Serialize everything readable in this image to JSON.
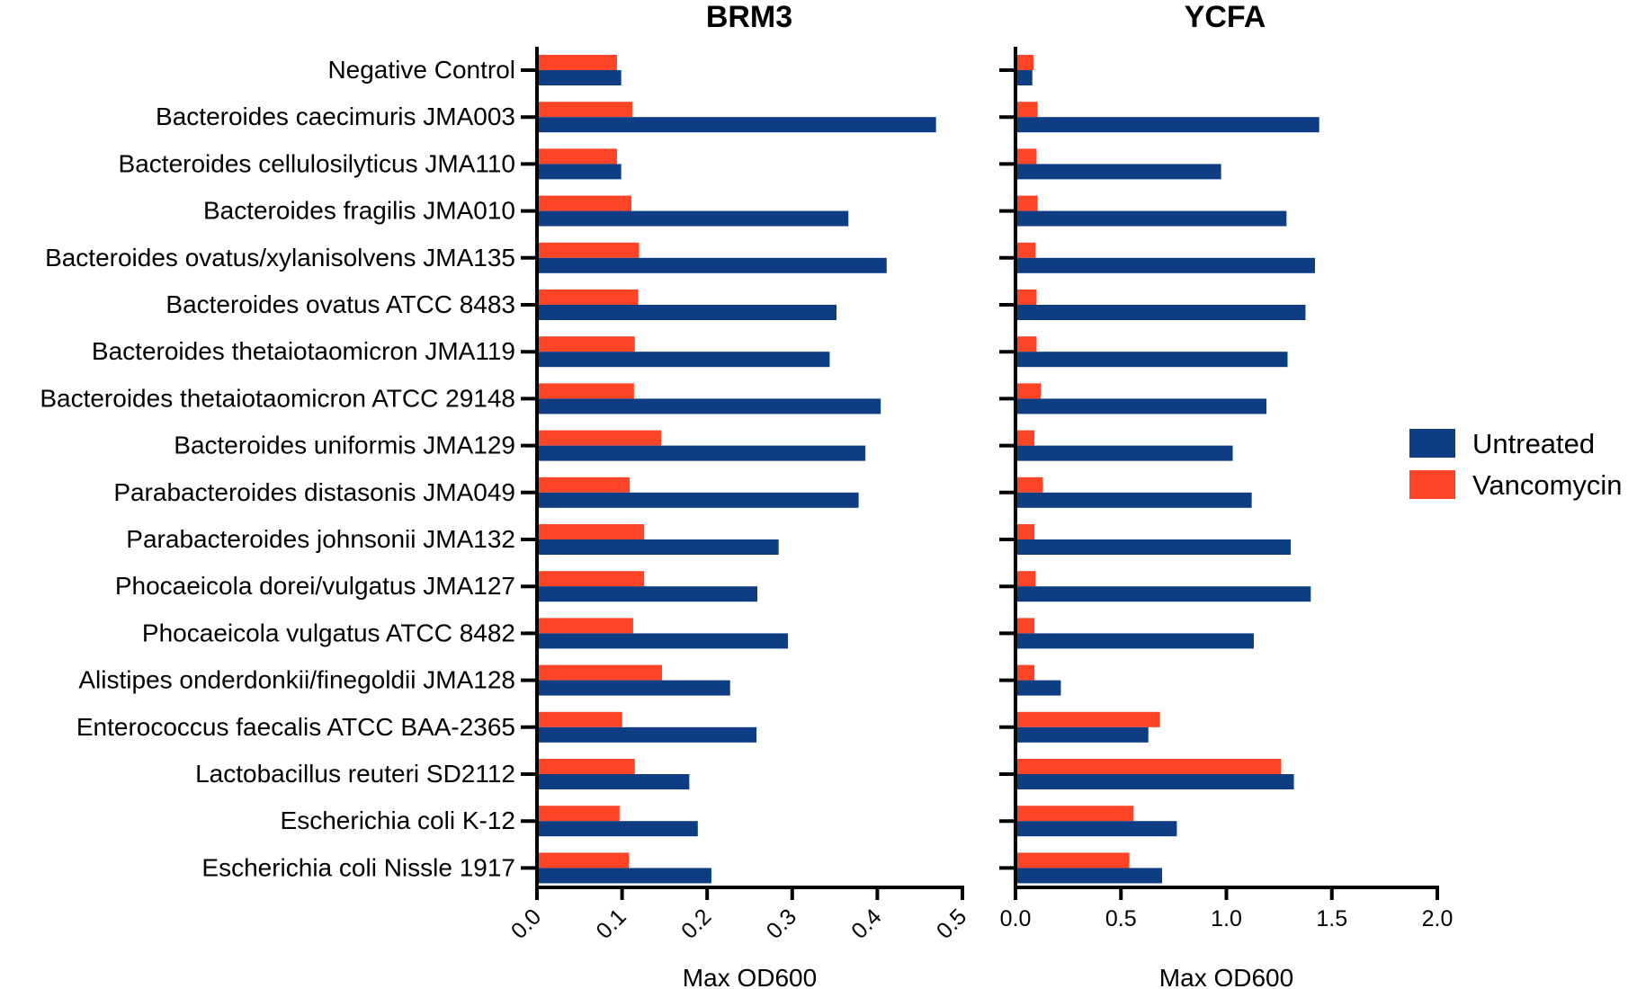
{
  "chart_data": {
    "type": "bar",
    "orientation": "horizontal",
    "categories": [
      "Negative Control",
      "Bacteroides caecimuris JMA003",
      "Bacteroides cellulosilyticus JMA110",
      "Bacteroides fragilis JMA010",
      "Bacteroides ovatus/xylanisolvens JMA135",
      "Bacteroides ovatus ATCC 8483",
      "Bacteroides thetaiotaomicron JMA119",
      "Bacteroides thetaiotaomicron ATCC 29148",
      "Bacteroides uniformis JMA129",
      "Parabacteroides distasonis JMA049",
      "Parabacteroides johnsonii JMA132",
      "Phocaeicola dorei/vulgatus JMA127",
      "Phocaeicola vulgatus ATCC 8482",
      "Alistipes onderdonkii/finegoldii JMA128",
      "Enterococcus faecalis ATCC BAA-2365",
      "Lactobacillus reuteri SD2112",
      "Escherichia coli K-12",
      "Escherichia coli Nissle 1917"
    ],
    "legend": {
      "position": "right",
      "entries": [
        "Untreated",
        "Vancomycin"
      ]
    },
    "colors": {
      "Untreated": "#0f3d84",
      "Vancomycin": "#fe4426"
    },
    "panels": [
      {
        "title": "BRM3",
        "xlabel": "Max OD600",
        "xlim": [
          0,
          0.5
        ],
        "ticks": [
          "0.0",
          "0.1",
          "0.2",
          "0.3",
          "0.4",
          "0.5"
        ],
        "tick_values": [
          0,
          0.1,
          0.2,
          0.3,
          0.4,
          0.5
        ],
        "tick_rotation": "diagonal",
        "series": [
          {
            "name": "Vancomycin",
            "values": [
              0.094,
              0.112,
              0.094,
              0.111,
              0.12,
              0.119,
              0.115,
              0.114,
              0.146,
              0.109,
              0.126,
              0.126,
              0.113,
              0.147,
              0.1,
              0.115,
              0.097,
              0.108
            ]
          },
          {
            "name": "Untreated",
            "values": [
              0.099,
              0.469,
              0.099,
              0.366,
              0.411,
              0.352,
              0.344,
              0.404,
              0.386,
              0.378,
              0.284,
              0.259,
              0.295,
              0.227,
              0.258,
              0.179,
              0.189,
              0.205
            ]
          }
        ]
      },
      {
        "title": "YCFA",
        "xlabel": "Max OD600",
        "xlim": [
          0,
          2.0
        ],
        "ticks": [
          "0.0",
          "0.5",
          "1.0",
          "1.5",
          "2.0"
        ],
        "tick_values": [
          0,
          0.5,
          1.0,
          1.5,
          2.0
        ],
        "tick_rotation": "none",
        "series": [
          {
            "name": "Vancomycin",
            "values": [
              0.085,
              0.105,
              0.1,
              0.105,
              0.095,
              0.1,
              0.1,
              0.12,
              0.09,
              0.13,
              0.09,
              0.095,
              0.09,
              0.09,
              0.685,
              1.26,
              0.56,
              0.54
            ]
          },
          {
            "name": "Untreated",
            "values": [
              0.08,
              1.44,
              0.975,
              1.285,
              1.42,
              1.375,
              1.29,
              1.19,
              1.03,
              1.12,
              1.305,
              1.4,
              1.13,
              0.215,
              0.63,
              1.32,
              0.765,
              0.695
            ]
          }
        ]
      }
    ]
  }
}
